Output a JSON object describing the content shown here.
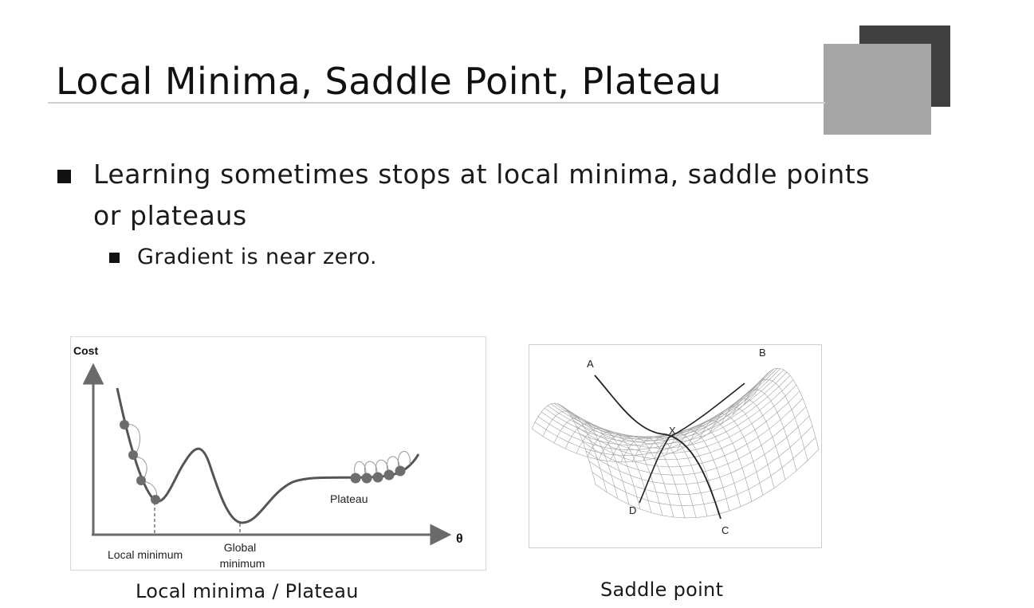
{
  "slide": {
    "title": "Local Minima, Saddle Point, Plateau",
    "bullets": [
      {
        "text": "Learning sometimes stops at local minima, saddle points or plateaus",
        "sub": [
          "Gradient is near zero."
        ]
      }
    ]
  },
  "figure_left": {
    "caption": "Local minima / Plateau",
    "y_axis_label": "Cost",
    "x_axis_label": "θ",
    "labels": {
      "local_minimum": "Local minimum",
      "global_line1": "Global",
      "global_line2": "minimum",
      "plateau": "Plateau"
    }
  },
  "figure_right": {
    "caption": "Saddle point",
    "point_labels": {
      "a": "A",
      "b": "B",
      "c": "C",
      "d": "D",
      "x": "X"
    }
  },
  "colors": {
    "accent_dark": "#404040",
    "accent_light": "#a6a6a6",
    "text": "#1a1a1a"
  }
}
